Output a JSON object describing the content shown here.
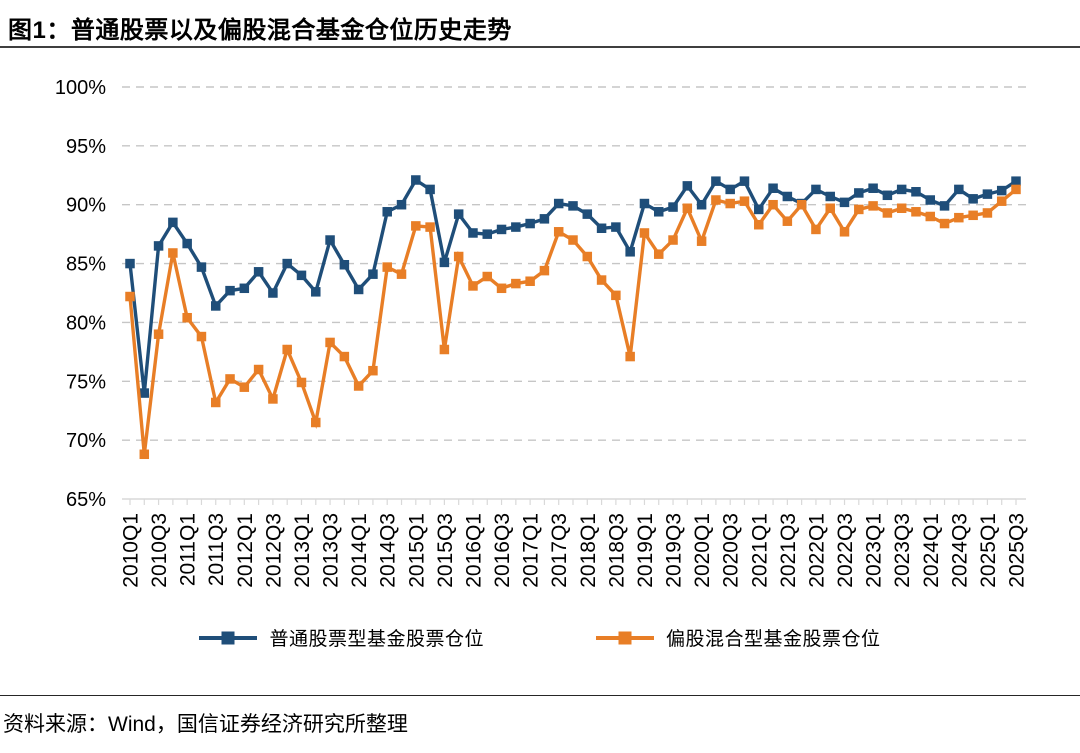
{
  "page": {
    "title": "图1：普通股票以及偏股混合基金仓位历史走势",
    "source": "资料来源：Wind，国信证券经济研究所整理"
  },
  "chart_data": {
    "type": "line",
    "title": "图1：普通股票以及偏股混合基金仓位历史走势",
    "grid": "horizontal-dashed",
    "legend_position": "bottom-center",
    "x": [
      "2010Q1",
      "2010Q2",
      "2010Q3",
      "2010Q4",
      "2011Q1",
      "2011Q2",
      "2011Q3",
      "2011Q4",
      "2012Q1",
      "2012Q2",
      "2012Q3",
      "2012Q4",
      "2013Q1",
      "2013Q2",
      "2013Q3",
      "2013Q4",
      "2014Q1",
      "2014Q2",
      "2014Q3",
      "2014Q4",
      "2015Q1",
      "2015Q2",
      "2015Q3",
      "2015Q4",
      "2016Q1",
      "2016Q2",
      "2016Q3",
      "2016Q4",
      "2017Q1",
      "2017Q2",
      "2017Q3",
      "2017Q4",
      "2018Q1",
      "2018Q2",
      "2018Q3",
      "2018Q4",
      "2019Q1",
      "2019Q2",
      "2019Q3",
      "2019Q4",
      "2020Q1",
      "2020Q2",
      "2020Q3",
      "2020Q4",
      "2021Q1",
      "2021Q2",
      "2021Q3",
      "2021Q4",
      "2022Q1",
      "2022Q2",
      "2022Q3",
      "2022Q4",
      "2023Q1",
      "2023Q2",
      "2023Q3",
      "2023Q4",
      "2024Q1",
      "2024Q2",
      "2024Q3",
      "2024Q4",
      "2025Q1",
      "2025Q2",
      "2025Q3"
    ],
    "x_tick_labels": [
      "2010Q1",
      "2010Q3",
      "2011Q1",
      "2011Q3",
      "2012Q1",
      "2012Q3",
      "2013Q1",
      "2013Q3",
      "2014Q1",
      "2014Q3",
      "2015Q1",
      "2015Q3",
      "2016Q1",
      "2016Q3",
      "2017Q1",
      "2017Q3",
      "2018Q1",
      "2018Q3",
      "2019Q1",
      "2019Q3",
      "2020Q1",
      "2020Q3",
      "2021Q1",
      "2021Q3",
      "2022Q1",
      "2022Q3",
      "2023Q1",
      "2023Q3",
      "2024Q1",
      "2024Q3",
      "2025Q1",
      "2025Q3"
    ],
    "y_axis": {
      "min": 65,
      "max": 100,
      "step": 5,
      "unit": "%",
      "tick_labels": [
        "100%",
        "95%",
        "90%",
        "85%",
        "80%",
        "75%",
        "70%",
        "65%"
      ]
    },
    "series": [
      {
        "name": "普通股票型基金股票仓位",
        "color": "#1F4E79",
        "marker": "square",
        "values": [
          85.0,
          74.0,
          86.5,
          88.5,
          86.7,
          84.7,
          81.4,
          82.7,
          82.9,
          84.3,
          82.5,
          85.0,
          84.0,
          82.6,
          87.0,
          84.9,
          82.8,
          84.1,
          89.4,
          90.0,
          92.1,
          91.3,
          85.1,
          89.2,
          87.6,
          87.5,
          87.9,
          88.1,
          88.4,
          88.8,
          90.1,
          89.9,
          89.2,
          88.0,
          88.1,
          86.0,
          90.1,
          89.4,
          89.8,
          91.6,
          90.0,
          92.0,
          91.3,
          92.0,
          89.6,
          91.4,
          90.7,
          90.1,
          91.3,
          90.7,
          90.2,
          91.0,
          91.4,
          90.8,
          91.3,
          91.1,
          90.4,
          89.9,
          91.3,
          90.5,
          90.9,
          91.2,
          92.0
        ]
      },
      {
        "name": "偏股混合型基金股票仓位",
        "color": "#E87E26",
        "marker": "square",
        "values": [
          82.2,
          68.8,
          79.0,
          85.9,
          80.4,
          78.8,
          73.2,
          75.2,
          74.5,
          76.0,
          73.5,
          77.7,
          74.9,
          71.5,
          78.3,
          77.1,
          74.6,
          75.9,
          84.7,
          84.1,
          88.2,
          88.1,
          77.7,
          85.6,
          83.1,
          83.9,
          82.9,
          83.3,
          83.5,
          84.4,
          87.7,
          87.0,
          85.6,
          83.6,
          82.3,
          77.1,
          87.6,
          85.8,
          87.0,
          89.7,
          86.9,
          90.4,
          90.1,
          90.3,
          88.3,
          90.0,
          88.6,
          90.0,
          87.9,
          89.7,
          87.7,
          89.6,
          89.9,
          89.3,
          89.7,
          89.4,
          89.0,
          88.4,
          88.9,
          89.1,
          89.3,
          90.3,
          91.3
        ]
      }
    ]
  }
}
